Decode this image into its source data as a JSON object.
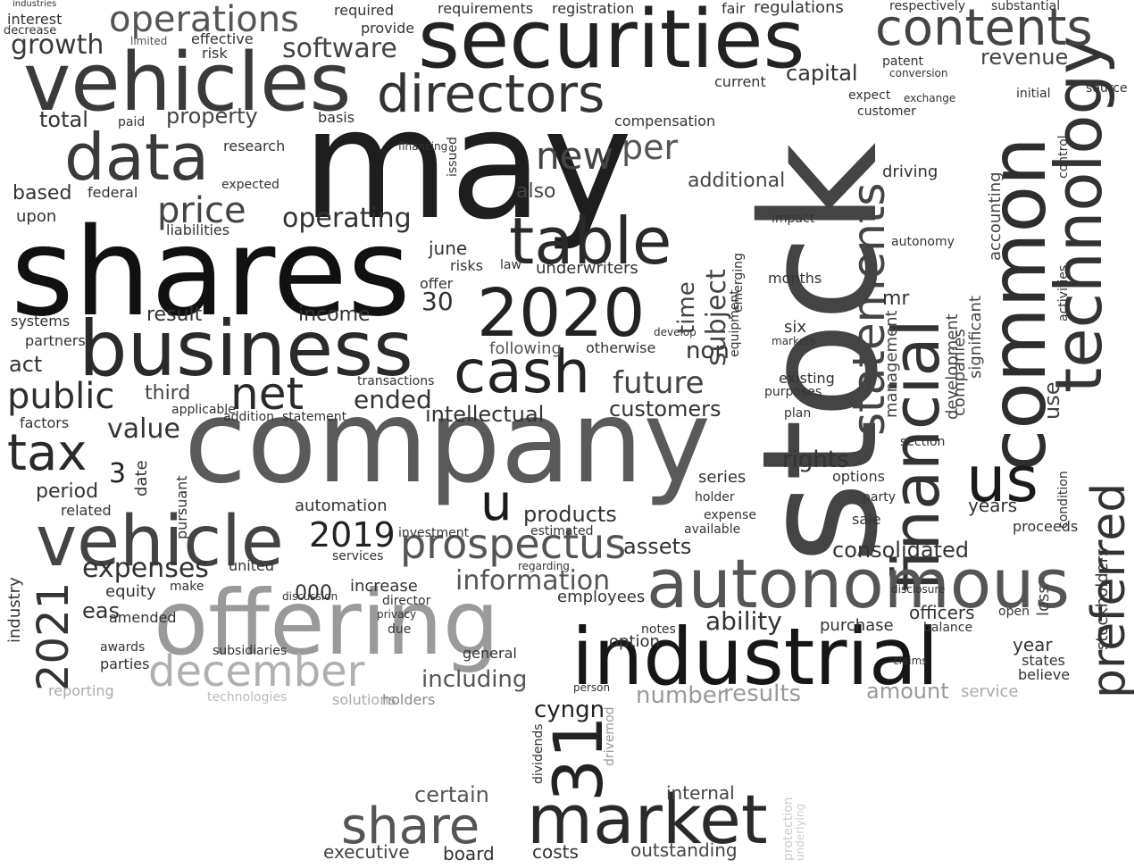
{
  "words": [
    {
      "text": "stock",
      "shade": "#444444"
    },
    {
      "text": "may",
      "shade": "#1e1e1e"
    },
    {
      "text": "company",
      "shade": "#5a5a5a"
    },
    {
      "text": "shares",
      "shade": "#111111"
    },
    {
      "text": "securities",
      "shade": "#222222"
    },
    {
      "text": "vehicles",
      "shade": "#3a3a3a"
    },
    {
      "text": "business",
      "shade": "#2a2a2a"
    },
    {
      "text": "offering",
      "shade": "#9a9a9a"
    },
    {
      "text": "industrial",
      "shade": "#161616"
    },
    {
      "text": "financial",
      "shade": "#333333"
    },
    {
      "text": "common",
      "shade": "#2e2e2e"
    },
    {
      "text": "technology",
      "shade": "#333333"
    },
    {
      "text": "autonomous",
      "shade": "#555555"
    },
    {
      "text": "vehicle",
      "shade": "#444444"
    },
    {
      "text": "data",
      "shade": "#3a3a3a"
    },
    {
      "text": "directors",
      "shade": "#333333"
    },
    {
      "text": "table",
      "shade": "#2a2a2a"
    },
    {
      "text": "2020",
      "shade": "#222222"
    },
    {
      "text": "december",
      "shade": "#b0b0b0"
    },
    {
      "text": "market",
      "shade": "#2a2a2a"
    },
    {
      "text": "contents",
      "shade": "#444444"
    },
    {
      "text": "statements",
      "shade": "#444444"
    },
    {
      "text": "preferred",
      "shade": "#333333"
    },
    {
      "text": "cash",
      "shade": "#222222"
    },
    {
      "text": "us",
      "shade": "#1a1a1a"
    },
    {
      "text": "share",
      "shade": "#555555"
    },
    {
      "text": "prospectus",
      "shade": "#555555"
    },
    {
      "text": "2021",
      "shade": "#333333"
    },
    {
      "text": "31",
      "shade": "#222222"
    },
    {
      "text": "tax",
      "shade": "#2a2a2a"
    },
    {
      "text": "net",
      "shade": "#2a2a2a"
    },
    {
      "text": "u",
      "shade": "#1a1a1a"
    },
    {
      "text": "public",
      "shade": "#2e2e2e"
    },
    {
      "text": "operations",
      "shade": "#555555"
    },
    {
      "text": "new",
      "shade": "#444444"
    },
    {
      "text": "per",
      "shade": "#555555"
    },
    {
      "text": "price",
      "shade": "#444444"
    },
    {
      "text": "growth",
      "shade": "#3a3a3a"
    },
    {
      "text": "software",
      "shade": "#444444"
    },
    {
      "text": "future",
      "shade": "#444444"
    },
    {
      "text": "value",
      "shade": "#333333"
    },
    {
      "text": "operating",
      "shade": "#333333"
    },
    {
      "text": "information",
      "shade": "#555555"
    },
    {
      "text": "2019",
      "shade": "#222222"
    },
    {
      "text": "expenses",
      "shade": "#333333"
    },
    {
      "text": "consolidated",
      "shade": "#333333"
    },
    {
      "text": "rights",
      "shade": "#333333"
    },
    {
      "text": "ability",
      "shade": "#333333"
    },
    {
      "text": "products",
      "shade": "#333333"
    },
    {
      "text": "assets",
      "shade": "#333333"
    },
    {
      "text": "total",
      "shade": "#333333"
    },
    {
      "text": "property",
      "shade": "#444444"
    },
    {
      "text": "revenue",
      "shade": "#444444"
    },
    {
      "text": "capital",
      "shade": "#333333"
    },
    {
      "text": "customers",
      "shade": "#333333"
    },
    {
      "text": "intellectual",
      "shade": "#333333"
    },
    {
      "text": "ended",
      "shade": "#333333"
    },
    {
      "text": "including",
      "shade": "#555555"
    },
    {
      "text": "cyngn",
      "shade": "#222222"
    },
    {
      "text": "certain",
      "shade": "#555555"
    },
    {
      "text": "board",
      "shade": "#333333"
    },
    {
      "text": "costs",
      "shade": "#333333"
    },
    {
      "text": "outstanding",
      "shade": "#444444"
    },
    {
      "text": "executive",
      "shade": "#444444"
    },
    {
      "text": "internal",
      "shade": "#444444"
    },
    {
      "text": "number",
      "shade": "#999999"
    },
    {
      "text": "results",
      "shade": "#999999"
    },
    {
      "text": "amount",
      "shade": "#999999"
    },
    {
      "text": "service",
      "shade": "#aaaaaa"
    },
    {
      "text": "reporting",
      "shade": "#aaaaaa"
    },
    {
      "text": "solutions",
      "shade": "#aaaaaa"
    },
    {
      "text": "holders",
      "shade": "#888888"
    },
    {
      "text": "technologies",
      "shade": "#bbbbbb"
    },
    {
      "text": "equity",
      "shade": "#333333"
    },
    {
      "text": "industry",
      "shade": "#333333"
    },
    {
      "text": "period",
      "shade": "#333333"
    },
    {
      "text": "act",
      "shade": "#333333"
    },
    {
      "text": "based",
      "shade": "#333333"
    },
    {
      "text": "upon",
      "shade": "#333333"
    },
    {
      "text": "income",
      "shade": "#333333"
    },
    {
      "text": "result",
      "shade": "#333333"
    },
    {
      "text": "following",
      "shade": "#555555"
    },
    {
      "text": "third",
      "shade": "#444444"
    },
    {
      "text": "also",
      "shade": "#444444"
    },
    {
      "text": "additional",
      "shade": "#444444"
    },
    {
      "text": "development",
      "shade": "#444444"
    },
    {
      "text": "management",
      "shade": "#444444"
    },
    {
      "text": "use",
      "shade": "#444444"
    },
    {
      "text": "officers",
      "shade": "#333333"
    },
    {
      "text": "year",
      "shade": "#333333"
    },
    {
      "text": "years",
      "shade": "#333333"
    },
    {
      "text": "option",
      "shade": "#333333"
    },
    {
      "text": "june",
      "shade": "#333333"
    },
    {
      "text": "30",
      "shade": "#333333"
    },
    {
      "text": "3",
      "shade": "#222222"
    },
    {
      "text": "non",
      "shade": "#333333"
    },
    {
      "text": "time",
      "shade": "#444444"
    },
    {
      "text": "subject",
      "shade": "#444444"
    },
    {
      "text": "eas",
      "shade": "#333333"
    },
    {
      "text": "000",
      "shade": "#333333"
    },
    {
      "text": "increase",
      "shade": "#333333"
    },
    {
      "text": "employees",
      "shade": "#333333"
    },
    {
      "text": "general",
      "shade": "#333333"
    },
    {
      "text": "purchase",
      "shade": "#333333"
    },
    {
      "text": "balance",
      "shade": "#333333"
    },
    {
      "text": "series",
      "shade": "#333333"
    },
    {
      "text": "sale",
      "shade": "#333333"
    },
    {
      "text": "proceeds",
      "shade": "#333333"
    },
    {
      "text": "stockholders",
      "shade": "#333333"
    },
    {
      "text": "companies",
      "shade": "#444444"
    },
    {
      "text": "significant",
      "shade": "#444444"
    },
    {
      "text": "accounting",
      "shade": "#444444"
    },
    {
      "text": "loss",
      "shade": "#444444"
    },
    {
      "text": "options",
      "shade": "#333333"
    },
    {
      "text": "party",
      "shade": "#333333"
    },
    {
      "text": "holder",
      "shade": "#333333"
    },
    {
      "text": "expense",
      "shade": "#333333"
    },
    {
      "text": "available",
      "shade": "#333333"
    },
    {
      "text": "automation",
      "shade": "#333333"
    },
    {
      "text": "related",
      "shade": "#333333"
    },
    {
      "text": "factors",
      "shade": "#333333"
    },
    {
      "text": "partners",
      "shade": "#333333"
    },
    {
      "text": "systems",
      "shade": "#333333"
    },
    {
      "text": "liabilities",
      "shade": "#333333"
    },
    {
      "text": "federal",
      "shade": "#333333"
    },
    {
      "text": "interest",
      "shade": "#333333"
    },
    {
      "text": "industries",
      "shade": "#333333"
    },
    {
      "text": "decrease",
      "shade": "#333333"
    },
    {
      "text": "limited",
      "shade": "#555555"
    },
    {
      "text": "effective",
      "shade": "#333333"
    },
    {
      "text": "risk",
      "shade": "#333333"
    },
    {
      "text": "required",
      "shade": "#333333"
    },
    {
      "text": "provide",
      "shade": "#333333"
    },
    {
      "text": "requirements",
      "shade": "#333333"
    },
    {
      "text": "registration",
      "shade": "#333333"
    },
    {
      "text": "fair",
      "shade": "#333333"
    },
    {
      "text": "regulations",
      "shade": "#333333"
    },
    {
      "text": "respectively",
      "shade": "#333333"
    },
    {
      "text": "substantial",
      "shade": "#333333"
    },
    {
      "text": "patent",
      "shade": "#333333"
    },
    {
      "text": "conversion",
      "shade": "#333333"
    },
    {
      "text": "customer",
      "shade": "#333333"
    },
    {
      "text": "expect",
      "shade": "#333333"
    },
    {
      "text": "exchange",
      "shade": "#333333"
    },
    {
      "text": "initial",
      "shade": "#333333"
    },
    {
      "text": "source",
      "shade": "#333333"
    },
    {
      "text": "current",
      "shade": "#333333"
    },
    {
      "text": "compensation",
      "shade": "#333333"
    },
    {
      "text": "paid",
      "shade": "#333333"
    },
    {
      "text": "basis",
      "shade": "#333333"
    },
    {
      "text": "research",
      "shade": "#333333"
    },
    {
      "text": "expected",
      "shade": "#333333"
    },
    {
      "text": "issued",
      "shade": "#333333"
    },
    {
      "text": "financing",
      "shade": "#333333"
    },
    {
      "text": "driving",
      "shade": "#333333"
    },
    {
      "text": "control",
      "shade": "#333333"
    },
    {
      "text": "activities",
      "shade": "#333333"
    },
    {
      "text": "underwriters",
      "shade": "#333333"
    },
    {
      "text": "risks",
      "shade": "#333333"
    },
    {
      "text": "law",
      "shade": "#333333"
    },
    {
      "text": "offer",
      "shade": "#333333"
    },
    {
      "text": "months",
      "shade": "#333333"
    },
    {
      "text": "six",
      "shade": "#333333"
    },
    {
      "text": "markets",
      "shade": "#333333"
    },
    {
      "text": "existing",
      "shade": "#333333"
    },
    {
      "text": "purposes",
      "shade": "#333333"
    },
    {
      "text": "plan",
      "shade": "#333333"
    },
    {
      "text": "mr",
      "shade": "#333333"
    },
    {
      "text": "otherwise",
      "shade": "#333333"
    },
    {
      "text": "develop",
      "shade": "#333333"
    },
    {
      "text": "equipment",
      "shade": "#333333"
    },
    {
      "text": "emerging",
      "shade": "#333333"
    },
    {
      "text": "impact",
      "shade": "#333333"
    },
    {
      "text": "autonomy",
      "shade": "#333333"
    },
    {
      "text": "pursuant",
      "shade": "#333333"
    },
    {
      "text": "date",
      "shade": "#333333"
    },
    {
      "text": "statement",
      "shade": "#333333"
    },
    {
      "text": "addition",
      "shade": "#333333"
    },
    {
      "text": "applicable",
      "shade": "#333333"
    },
    {
      "text": "transactions",
      "shade": "#333333"
    },
    {
      "text": "united",
      "shade": "#333333"
    },
    {
      "text": "services",
      "shade": "#333333"
    },
    {
      "text": "amended",
      "shade": "#333333"
    },
    {
      "text": "parties",
      "shade": "#333333"
    },
    {
      "text": "subsidiaries",
      "shade": "#333333"
    },
    {
      "text": "awards",
      "shade": "#333333"
    },
    {
      "text": "estimated",
      "shade": "#333333"
    },
    {
      "text": "investment",
      "shade": "#333333"
    },
    {
      "text": "regarding",
      "shade": "#333333"
    },
    {
      "text": "privacy",
      "shade": "#333333"
    },
    {
      "text": "due",
      "shade": "#333333"
    },
    {
      "text": "notes",
      "shade": "#333333"
    },
    {
      "text": "director",
      "shade": "#333333"
    },
    {
      "text": "discussion",
      "shade": "#333333"
    },
    {
      "text": "make",
      "shade": "#333333"
    },
    {
      "text": "states",
      "shade": "#333333"
    },
    {
      "text": "believe",
      "shade": "#333333"
    },
    {
      "text": "claims",
      "shade": "#333333"
    },
    {
      "text": "open",
      "shade": "#333333"
    },
    {
      "text": "condition",
      "shade": "#333333"
    },
    {
      "text": "section",
      "shade": "#333333"
    },
    {
      "text": "disclosure",
      "shade": "#333333"
    },
    {
      "text": "dividends",
      "shade": "#333333"
    },
    {
      "text": "drivemod",
      "shade": "#999999"
    },
    {
      "text": "person",
      "shade": "#333333"
    },
    {
      "text": "protection",
      "shade": "#cccccc"
    },
    {
      "text": "underlying",
      "shade": "#cccccc"
    }
  ]
}
